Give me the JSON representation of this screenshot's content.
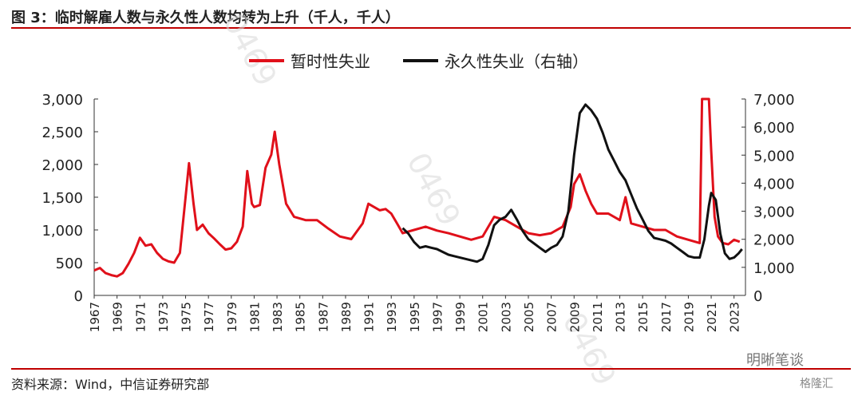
{
  "title": "图 3：临时解雇人数与永久性人数均转为上升（千人，千人）",
  "source": "资料来源：Wind，中信证券研究部",
  "brand_watermark": "明晰笔谈",
  "brand_watermark2": "格隆汇",
  "ghost_watermark": "0469",
  "chart_data": {
    "type": "line",
    "legend_position": "top-center",
    "grid": false,
    "x_ticks": [
      "1967",
      "1969",
      "1971",
      "1973",
      "1975",
      "1977",
      "1979",
      "1981",
      "1983",
      "1985",
      "1987",
      "1989",
      "1991",
      "1993",
      "1995",
      "1997",
      "1999",
      "2001",
      "2003",
      "2005",
      "2007",
      "2009",
      "2011",
      "2013",
      "2015",
      "2017",
      "2019",
      "2021",
      "2023"
    ],
    "y_left": {
      "ticks": [
        0,
        500,
        1000,
        1500,
        2000,
        2500,
        3000
      ],
      "tick_labels": [
        "0",
        "500",
        "1,000",
        "1,500",
        "2,000",
        "2,500",
        "3,000"
      ],
      "lim": [
        0,
        3000
      ]
    },
    "y_right": {
      "ticks": [
        0,
        1000,
        2000,
        3000,
        4000,
        5000,
        6000,
        7000
      ],
      "tick_labels": [
        "0",
        "1,000",
        "2,000",
        "3,000",
        "4,000",
        "5,000",
        "6,000",
        "7,000"
      ],
      "lim": [
        0,
        7000
      ]
    },
    "series": [
      {
        "name": "暂时性失业",
        "color": "#e0101a",
        "axis": "left",
        "points": [
          [
            1967.0,
            380
          ],
          [
            1967.5,
            420
          ],
          [
            1968.0,
            340
          ],
          [
            1968.5,
            310
          ],
          [
            1969.0,
            290
          ],
          [
            1969.5,
            340
          ],
          [
            1970.0,
            480
          ],
          [
            1970.5,
            650
          ],
          [
            1971.0,
            880
          ],
          [
            1971.5,
            760
          ],
          [
            1972.0,
            780
          ],
          [
            1972.5,
            650
          ],
          [
            1973.0,
            560
          ],
          [
            1973.5,
            520
          ],
          [
            1974.0,
            500
          ],
          [
            1974.5,
            650
          ],
          [
            1975.0,
            1500
          ],
          [
            1975.3,
            2020
          ],
          [
            1975.7,
            1400
          ],
          [
            1976.0,
            1000
          ],
          [
            1976.5,
            1080
          ],
          [
            1977.0,
            950
          ],
          [
            1977.5,
            870
          ],
          [
            1978.0,
            780
          ],
          [
            1978.5,
            700
          ],
          [
            1979.0,
            720
          ],
          [
            1979.5,
            820
          ],
          [
            1980.0,
            1050
          ],
          [
            1980.4,
            1900
          ],
          [
            1980.8,
            1400
          ],
          [
            1981.0,
            1350
          ],
          [
            1981.5,
            1380
          ],
          [
            1982.0,
            1950
          ],
          [
            1982.5,
            2150
          ],
          [
            1982.8,
            2500
          ],
          [
            1983.2,
            2000
          ],
          [
            1983.8,
            1400
          ],
          [
            1984.5,
            1200
          ],
          [
            1985.5,
            1150
          ],
          [
            1986.5,
            1150
          ],
          [
            1987.5,
            1020
          ],
          [
            1988.5,
            900
          ],
          [
            1989.5,
            860
          ],
          [
            1990.5,
            1100
          ],
          [
            1991.0,
            1400
          ],
          [
            1991.5,
            1350
          ],
          [
            1992.0,
            1300
          ],
          [
            1992.5,
            1320
          ],
          [
            1993.0,
            1250
          ],
          [
            1993.5,
            1100
          ],
          [
            1994.0,
            950
          ],
          [
            1995.0,
            1000
          ],
          [
            1996.0,
            1050
          ],
          [
            1997.0,
            990
          ],
          [
            1998.0,
            950
          ],
          [
            1999.0,
            900
          ],
          [
            2000.0,
            850
          ],
          [
            2001.0,
            900
          ],
          [
            2001.5,
            1050
          ],
          [
            2002.0,
            1200
          ],
          [
            2003.0,
            1150
          ],
          [
            2004.0,
            1050
          ],
          [
            2005.0,
            950
          ],
          [
            2006.0,
            920
          ],
          [
            2007.0,
            950
          ],
          [
            2008.0,
            1050
          ],
          [
            2008.7,
            1350
          ],
          [
            2009.0,
            1700
          ],
          [
            2009.5,
            1850
          ],
          [
            2010.0,
            1600
          ],
          [
            2010.5,
            1400
          ],
          [
            2011.0,
            1250
          ],
          [
            2012.0,
            1250
          ],
          [
            2013.0,
            1150
          ],
          [
            2013.5,
            1500
          ],
          [
            2014.0,
            1100
          ],
          [
            2015.0,
            1050
          ],
          [
            2016.0,
            1000
          ],
          [
            2017.0,
            1000
          ],
          [
            2018.0,
            900
          ],
          [
            2019.0,
            850
          ],
          [
            2020.0,
            800
          ],
          [
            2020.2,
            3000
          ],
          [
            2020.5,
            3000
          ],
          [
            2020.8,
            3000
          ],
          [
            2021.0,
            2200
          ],
          [
            2021.3,
            1200
          ],
          [
            2021.6,
            900
          ],
          [
            2022.0,
            800
          ],
          [
            2022.5,
            780
          ],
          [
            2023.0,
            850
          ],
          [
            2023.5,
            820
          ]
        ]
      },
      {
        "name": "永久性失业（右轴）",
        "color": "#111111",
        "axis": "right",
        "points": [
          [
            1994.0,
            2400
          ],
          [
            1994.5,
            2200
          ],
          [
            1995.0,
            1900
          ],
          [
            1995.5,
            1700
          ],
          [
            1996.0,
            1750
          ],
          [
            1996.5,
            1700
          ],
          [
            1997.0,
            1650
          ],
          [
            1997.5,
            1550
          ],
          [
            1998.0,
            1450
          ],
          [
            1998.5,
            1400
          ],
          [
            1999.0,
            1350
          ],
          [
            1999.5,
            1300
          ],
          [
            2000.0,
            1250
          ],
          [
            2000.5,
            1200
          ],
          [
            2001.0,
            1300
          ],
          [
            2001.5,
            1800
          ],
          [
            2002.0,
            2500
          ],
          [
            2002.5,
            2700
          ],
          [
            2003.0,
            2800
          ],
          [
            2003.5,
            3050
          ],
          [
            2004.0,
            2700
          ],
          [
            2004.5,
            2300
          ],
          [
            2005.0,
            2000
          ],
          [
            2005.5,
            1850
          ],
          [
            2006.0,
            1700
          ],
          [
            2006.5,
            1550
          ],
          [
            2007.0,
            1700
          ],
          [
            2007.5,
            1800
          ],
          [
            2008.0,
            2100
          ],
          [
            2008.5,
            3000
          ],
          [
            2009.0,
            5000
          ],
          [
            2009.5,
            6500
          ],
          [
            2010.0,
            6800
          ],
          [
            2010.5,
            6600
          ],
          [
            2011.0,
            6300
          ],
          [
            2011.5,
            5800
          ],
          [
            2012.0,
            5200
          ],
          [
            2012.5,
            4800
          ],
          [
            2013.0,
            4400
          ],
          [
            2013.5,
            4100
          ],
          [
            2014.0,
            3600
          ],
          [
            2014.5,
            3100
          ],
          [
            2015.0,
            2700
          ],
          [
            2015.5,
            2300
          ],
          [
            2016.0,
            2050
          ],
          [
            2016.5,
            2000
          ],
          [
            2017.0,
            1950
          ],
          [
            2017.5,
            1850
          ],
          [
            2018.0,
            1700
          ],
          [
            2018.5,
            1550
          ],
          [
            2019.0,
            1400
          ],
          [
            2019.5,
            1350
          ],
          [
            2020.0,
            1350
          ],
          [
            2020.4,
            2000
          ],
          [
            2020.8,
            3200
          ],
          [
            2021.0,
            3650
          ],
          [
            2021.4,
            3400
          ],
          [
            2021.8,
            2200
          ],
          [
            2022.2,
            1500
          ],
          [
            2022.6,
            1300
          ],
          [
            2023.0,
            1350
          ],
          [
            2023.4,
            1500
          ],
          [
            2023.7,
            1650
          ]
        ]
      }
    ]
  }
}
